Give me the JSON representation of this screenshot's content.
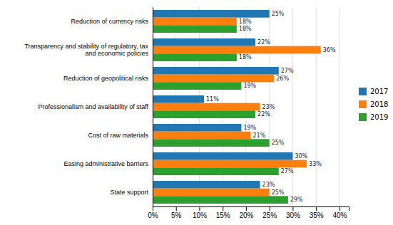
{
  "chart_data": {
    "type": "bar",
    "orientation": "horizontal",
    "categories": [
      "Reduction of currency risks",
      "Transparency and stability of regulatory, tax\nand economic policies",
      "Reduction of geopolitical risks",
      "Professionalism and availability of staff",
      "Cost of raw materials",
      "Easing administrative barriers",
      "State support"
    ],
    "series": [
      {
        "name": "2017",
        "values": [
          25,
          22,
          27,
          11,
          19,
          30,
          23
        ],
        "value_labels": [
          "25%",
          "22%",
          "27%",
          "11%",
          "19%",
          "30%",
          "23%"
        ]
      },
      {
        "name": "2018",
        "values": [
          18,
          36,
          26,
          23,
          21,
          33,
          25
        ],
        "value_labels": [
          "18%",
          "36%",
          "26%",
          "23%",
          "21%",
          "33%",
          "25%"
        ]
      },
      {
        "name": "2019",
        "values": [
          18,
          18,
          19,
          22,
          25,
          27,
          29
        ],
        "value_labels": [
          "18%",
          "18%",
          "19%",
          "22%",
          "25%",
          "27%",
          "29%"
        ]
      }
    ],
    "xlim": [
      0,
      42
    ],
    "xticks": [
      {
        "value": 0,
        "label": "0%"
      },
      {
        "value": 5,
        "label": "5%"
      },
      {
        "value": 10,
        "label": "10%"
      },
      {
        "value": 15,
        "label": "15%"
      },
      {
        "value": 20,
        "label": "20%"
      },
      {
        "value": 25,
        "label": "25%"
      },
      {
        "value": 30,
        "label": "30%"
      },
      {
        "value": 35,
        "label": "35%"
      },
      {
        "value": 40,
        "label": "40%"
      }
    ],
    "grid": true,
    "legend": "right",
    "data_labels": true
  }
}
